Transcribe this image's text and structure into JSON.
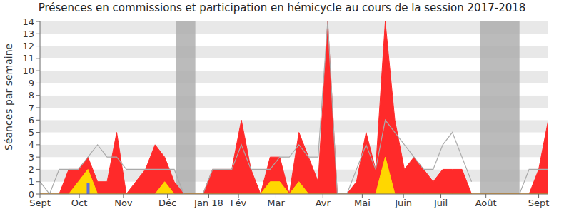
{
  "chart_data": {
    "type": "area",
    "title": "Présences en commissions et participation en hémicycle au cours de la session 2017-2018",
    "y_label": "Séances par semaine",
    "x": [
      0,
      1,
      2,
      3,
      4,
      5,
      6,
      7,
      8,
      9,
      10,
      11,
      12,
      13,
      14,
      15,
      16,
      17,
      18,
      19,
      20,
      21,
      22,
      23,
      24,
      25,
      26,
      27,
      28,
      29,
      30,
      31,
      32,
      33,
      34,
      35,
      36,
      37,
      38,
      39,
      40,
      41,
      42,
      43,
      44,
      45,
      46,
      47,
      48,
      49,
      50,
      51,
      52,
      53
    ],
    "xlim": [
      0,
      53
    ],
    "xticks": [
      {
        "value": 0,
        "label": "Sept"
      },
      {
        "value": 4.1,
        "label": "Oct"
      },
      {
        "value": 8.7,
        "label": "Nov"
      },
      {
        "value": 13.3,
        "label": "Déc"
      },
      {
        "value": 17.6,
        "label": "Jan 18"
      },
      {
        "value": 20.7,
        "label": "Fév"
      },
      {
        "value": 24.6,
        "label": "Mar"
      },
      {
        "value": 29.5,
        "label": "Avr"
      },
      {
        "value": 33.6,
        "label": "Mai"
      },
      {
        "value": 37.9,
        "label": "Juin"
      },
      {
        "value": 41.8,
        "label": "Juil"
      },
      {
        "value": 46.5,
        "label": "Août"
      },
      {
        "value": 52,
        "label": "Sept"
      }
    ],
    "ylim": [
      0,
      14
    ],
    "yticks": [
      0,
      1,
      2,
      3,
      4,
      5,
      6,
      7,
      8,
      9,
      10,
      11,
      12,
      13,
      14
    ],
    "grid": true,
    "vacation_weeks": [
      [
        14.2,
        16.2
      ],
      [
        45.9,
        50
      ]
    ],
    "series": [
      {
        "type": "area",
        "color": "#ff2a2a",
        "values": [
          0,
          0,
          0,
          2,
          2,
          3,
          1,
          1,
          5,
          0,
          1,
          2,
          4,
          3,
          1,
          0,
          0,
          0,
          2,
          2,
          2,
          6,
          2,
          0,
          3,
          3,
          0,
          5,
          3,
          1,
          14,
          0,
          0,
          1,
          5,
          2,
          14,
          6,
          2,
          3,
          2,
          1,
          2,
          2,
          2,
          0,
          0,
          0,
          0,
          0,
          0,
          0,
          2,
          6
        ]
      },
      {
        "type": "area",
        "color": "#ffd700",
        "values": [
          0,
          0,
          0,
          0,
          1,
          2,
          0,
          0,
          0,
          0,
          0,
          0,
          0,
          1,
          0,
          0,
          0,
          0,
          0,
          0,
          0,
          0,
          0,
          0,
          1,
          1,
          0,
          1,
          0,
          0,
          0,
          0,
          0,
          0,
          0,
          0,
          3,
          0,
          0,
          0,
          0,
          0,
          0,
          0,
          0,
          0,
          0,
          0,
          0,
          0,
          0,
          0,
          0,
          0
        ]
      },
      {
        "type": "bar",
        "color": "#5b6ee1",
        "values": [
          null,
          null,
          null,
          null,
          null,
          0.9,
          null,
          null,
          null,
          null,
          null,
          null,
          null,
          null,
          null,
          null,
          null,
          null,
          null,
          null,
          null,
          null,
          null,
          null,
          null,
          null,
          null,
          null,
          null,
          null,
          null,
          null,
          null,
          null,
          null,
          null,
          null,
          null,
          null,
          null,
          null,
          null,
          null,
          null,
          null,
          null,
          null,
          null,
          null,
          null,
          null,
          null,
          null,
          null
        ]
      },
      {
        "type": "line",
        "color": "#aaaaaa",
        "values": [
          1,
          0,
          2,
          2,
          2,
          3,
          4,
          3,
          3,
          2,
          2,
          2,
          2,
          2,
          2,
          0,
          null,
          0,
          2,
          2,
          2,
          4,
          2,
          2,
          2,
          3,
          3,
          4,
          3,
          3,
          14,
          0,
          0,
          2,
          4,
          2,
          6,
          5,
          4,
          3,
          2,
          2,
          4,
          5,
          3,
          1,
          null,
          null,
          null,
          null,
          0,
          2,
          2,
          2
        ]
      }
    ]
  }
}
